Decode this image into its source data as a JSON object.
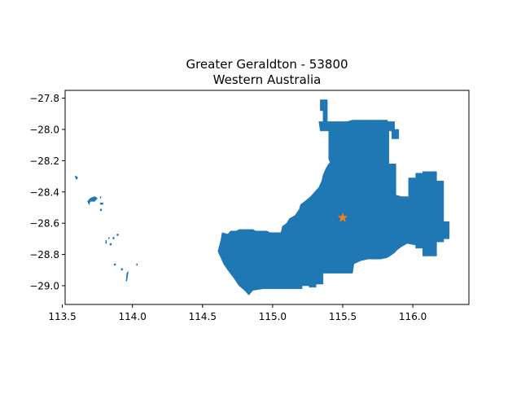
{
  "title": {
    "line1": "Greater Geraldton - 53800",
    "line2": "Western Australia"
  },
  "colors": {
    "region_fill": "#1f77b4",
    "marker": "#ff7f0e",
    "axes": "#000000",
    "background": "#ffffff"
  },
  "chart_data": {
    "type": "map",
    "region": "Greater Geraldton - 53800",
    "state": "Western Australia",
    "xlim": [
      113.52,
      116.4
    ],
    "ylim": [
      -29.12,
      -27.75
    ],
    "grid": false,
    "x_ticks": [
      113.5,
      114.0,
      114.5,
      115.0,
      115.5,
      116.0
    ],
    "x_tick_labels": [
      "113.5",
      "114.0",
      "114.5",
      "115.0",
      "115.5",
      "116.0"
    ],
    "y_ticks": [
      -27.8,
      -28.0,
      -28.2,
      -28.4,
      -28.6,
      -28.8,
      -29.0
    ],
    "y_tick_labels": [
      "−27.8",
      "−28.0",
      "−28.2",
      "−28.4",
      "−28.6",
      "−28.8",
      "−29.0"
    ],
    "marker": {
      "lon": 115.5,
      "lat": -28.565,
      "symbol": "star"
    },
    "mainland_boundary": [
      [
        114.61,
        -28.78
      ],
      [
        114.63,
        -28.71
      ],
      [
        114.64,
        -28.66
      ],
      [
        114.68,
        -28.67
      ],
      [
        114.7,
        -28.65
      ],
      [
        114.74,
        -28.65
      ],
      [
        114.76,
        -28.64
      ],
      [
        114.86,
        -28.64
      ],
      [
        114.88,
        -28.65
      ],
      [
        114.96,
        -28.65
      ],
      [
        114.98,
        -28.66
      ],
      [
        115.06,
        -28.66
      ],
      [
        115.07,
        -28.62
      ],
      [
        115.1,
        -28.6
      ],
      [
        115.12,
        -28.57
      ],
      [
        115.16,
        -28.55
      ],
      [
        115.19,
        -28.51
      ],
      [
        115.2,
        -28.48
      ],
      [
        115.23,
        -28.46
      ],
      [
        115.27,
        -28.43
      ],
      [
        115.3,
        -28.4
      ],
      [
        115.33,
        -28.37
      ],
      [
        115.35,
        -28.33
      ],
      [
        115.36,
        -28.29
      ],
      [
        115.38,
        -28.25
      ],
      [
        115.4,
        -28.22
      ],
      [
        115.41,
        -28.21
      ],
      [
        115.4,
        -28.19
      ],
      [
        115.4,
        -28.01
      ],
      [
        115.34,
        -28.01
      ],
      [
        115.33,
        -27.95
      ],
      [
        115.36,
        -27.95
      ],
      [
        115.36,
        -27.88
      ],
      [
        115.34,
        -27.88
      ],
      [
        115.34,
        -27.81
      ],
      [
        115.39,
        -27.81
      ],
      [
        115.39,
        -27.95
      ],
      [
        115.53,
        -27.95
      ],
      [
        115.57,
        -27.94
      ],
      [
        115.82,
        -27.94
      ],
      [
        115.82,
        -27.95
      ],
      [
        115.87,
        -27.95
      ],
      [
        115.87,
        -28.0
      ],
      [
        115.9,
        -28.0
      ],
      [
        115.9,
        -28.06
      ],
      [
        115.85,
        -28.06
      ],
      [
        115.85,
        -28.01
      ],
      [
        115.83,
        -28.01
      ],
      [
        115.83,
        -28.22
      ],
      [
        115.88,
        -28.22
      ],
      [
        115.88,
        -28.42
      ],
      [
        115.92,
        -28.43
      ],
      [
        115.97,
        -28.43
      ],
      [
        115.97,
        -28.31
      ],
      [
        116.02,
        -28.31
      ],
      [
        116.02,
        -28.28
      ],
      [
        116.07,
        -28.28
      ],
      [
        116.07,
        -28.27
      ],
      [
        116.17,
        -28.27
      ],
      [
        116.17,
        -28.33
      ],
      [
        116.22,
        -28.33
      ],
      [
        116.22,
        -28.59
      ],
      [
        116.26,
        -28.59
      ],
      [
        116.26,
        -28.7
      ],
      [
        116.22,
        -28.7
      ],
      [
        116.22,
        -28.72
      ],
      [
        116.17,
        -28.72
      ],
      [
        116.17,
        -28.81
      ],
      [
        116.07,
        -28.81
      ],
      [
        116.07,
        -28.76
      ],
      [
        116.02,
        -28.76
      ],
      [
        116.02,
        -28.74
      ],
      [
        115.96,
        -28.73
      ],
      [
        115.92,
        -28.75
      ],
      [
        115.89,
        -28.77
      ],
      [
        115.87,
        -28.79
      ],
      [
        115.82,
        -28.82
      ],
      [
        115.77,
        -28.83
      ],
      [
        115.68,
        -28.83
      ],
      [
        115.63,
        -28.84
      ],
      [
        115.58,
        -28.86
      ],
      [
        115.57,
        -28.92
      ],
      [
        115.36,
        -28.92
      ],
      [
        115.36,
        -28.99
      ],
      [
        115.31,
        -28.99
      ],
      [
        115.31,
        -29.01
      ],
      [
        115.26,
        -29.01
      ],
      [
        115.26,
        -29.0
      ],
      [
        115.21,
        -29.0
      ],
      [
        115.21,
        -29.02
      ],
      [
        115.01,
        -29.02
      ],
      [
        114.93,
        -29.02
      ],
      [
        114.86,
        -29.03
      ],
      [
        114.83,
        -29.06
      ],
      [
        114.8,
        -29.03
      ],
      [
        114.76,
        -29.0
      ],
      [
        114.73,
        -28.96
      ],
      [
        114.68,
        -28.9
      ],
      [
        114.65,
        -28.86
      ],
      [
        114.63,
        -28.82
      ]
    ],
    "island_fragments": [
      [
        [
          113.59,
          -28.3
        ],
        [
          113.6,
          -28.3
        ],
        [
          113.61,
          -28.31
        ],
        [
          113.6,
          -28.32
        ]
      ],
      [
        [
          113.68,
          -28.46
        ],
        [
          113.7,
          -28.44
        ],
        [
          113.73,
          -28.43
        ],
        [
          113.75,
          -28.44
        ],
        [
          113.73,
          -28.46
        ],
        [
          113.7,
          -28.46
        ],
        [
          113.69,
          -28.48
        ]
      ],
      [
        [
          113.77,
          -28.47
        ],
        [
          113.79,
          -28.47
        ],
        [
          113.79,
          -28.48
        ],
        [
          113.77,
          -28.48
        ]
      ],
      [
        [
          113.77,
          -28.51
        ],
        [
          113.78,
          -28.51
        ],
        [
          113.78,
          -28.52
        ],
        [
          113.77,
          -28.52
        ]
      ],
      [
        [
          113.81,
          -28.71
        ],
        [
          113.815,
          -28.71
        ],
        [
          113.815,
          -28.73
        ],
        [
          113.81,
          -28.73
        ]
      ],
      [
        [
          113.86,
          -28.69
        ],
        [
          113.87,
          -28.69
        ],
        [
          113.87,
          -28.7
        ],
        [
          113.86,
          -28.7
        ]
      ],
      [
        [
          113.84,
          -28.73
        ],
        [
          113.85,
          -28.73
        ],
        [
          113.85,
          -28.74
        ],
        [
          113.84,
          -28.74
        ]
      ],
      [
        [
          113.89,
          -28.67
        ],
        [
          113.9,
          -28.67
        ],
        [
          113.9,
          -28.68
        ],
        [
          113.89,
          -28.68
        ]
      ],
      [
        [
          113.87,
          -28.86
        ],
        [
          113.88,
          -28.86
        ],
        [
          113.88,
          -28.87
        ],
        [
          113.87,
          -28.87
        ]
      ],
      [
        [
          113.96,
          -28.92
        ],
        [
          113.97,
          -28.91
        ],
        [
          113.96,
          -28.97
        ],
        [
          113.955,
          -28.97
        ]
      ],
      [
        [
          113.92,
          -28.89
        ],
        [
          113.93,
          -28.89
        ],
        [
          113.93,
          -28.9
        ],
        [
          113.92,
          -28.9
        ]
      ],
      [
        [
          114.03,
          -28.86
        ],
        [
          114.035,
          -28.86
        ],
        [
          114.035,
          -28.87
        ],
        [
          114.03,
          -28.87
        ]
      ],
      [
        [
          113.77,
          -28.43
        ],
        [
          113.775,
          -28.43
        ],
        [
          113.775,
          -28.44
        ],
        [
          113.77,
          -28.44
        ]
      ],
      [
        [
          113.83,
          -28.69
        ],
        [
          113.835,
          -28.69
        ],
        [
          113.835,
          -28.7
        ],
        [
          113.83,
          -28.7
        ]
      ]
    ]
  }
}
